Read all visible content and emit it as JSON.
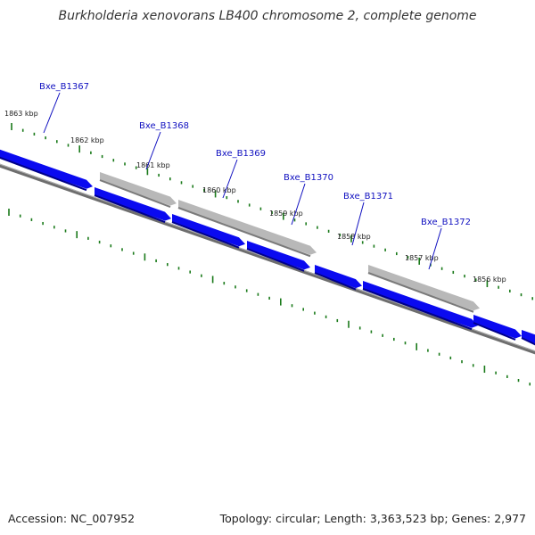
{
  "title": "Burkholderia xenovorans LB400 chromosome 2, complete genome",
  "footer": {
    "accession": "Accession: NC_007952",
    "summary": "Topology: circular; Length: 3,363,523 bp; Genes: 2,977"
  },
  "colors": {
    "forward_gene": "#0a0af0",
    "reverse_gene": "#b8b8b8",
    "backbone": "#808080",
    "tick": "#1a7a1a",
    "gene_label": "#1010c0"
  },
  "gene_labels": [
    "Bxe_B1367",
    "Bxe_B1368",
    "Bxe_B1369",
    "Bxe_B1370",
    "Bxe_B1371",
    "Bxe_B1372"
  ],
  "kbp_labels": [
    "1863 kbp",
    "1862 kbp",
    "1861 kbp",
    "1860 kbp",
    "1859 kbp",
    "1858 kbp",
    "1857 kbp",
    "1856 kbp"
  ]
}
